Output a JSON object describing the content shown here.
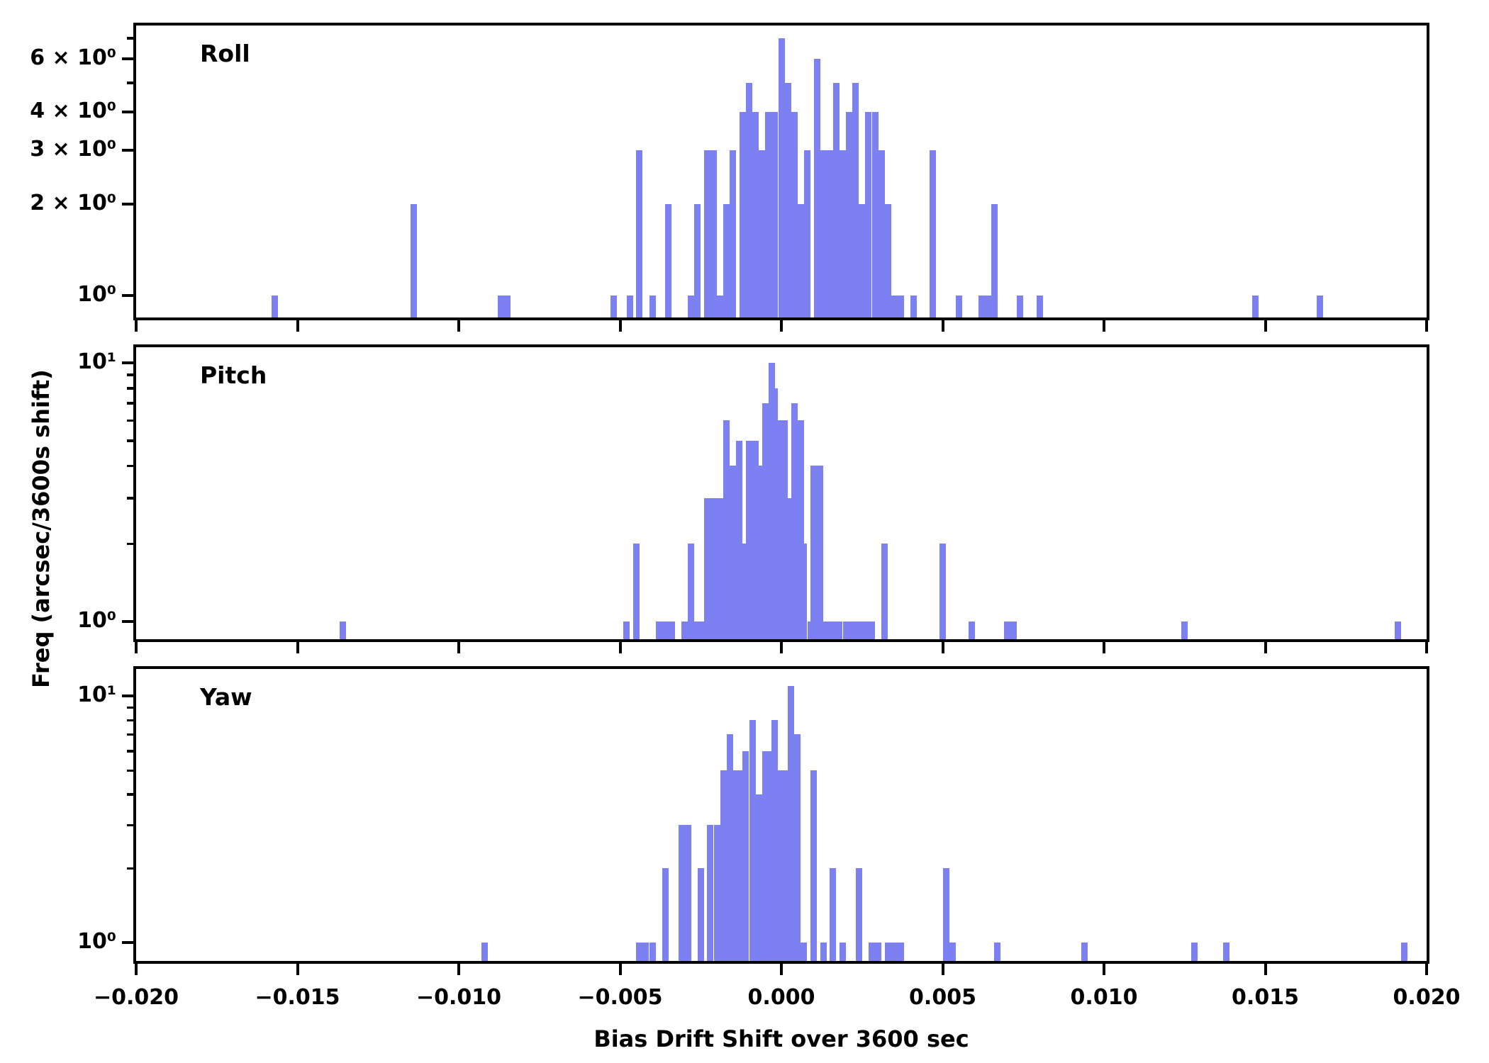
{
  "figure": {
    "background": "#ffffff",
    "bar_color": "#7C80F0",
    "axis_color": "#000000",
    "xlabel": "Bias Drift Shift over 3600 sec",
    "ylabel": "Freq (arcsec/3600s shift)"
  },
  "x_axis": {
    "min": -0.02,
    "max": 0.02,
    "tick_values": [
      -0.02,
      -0.015,
      -0.01,
      -0.005,
      0.0,
      0.005,
      0.01,
      0.015,
      0.02
    ],
    "tick_labels": [
      "−0.020",
      "−0.015",
      "−0.010",
      "−0.005",
      "0.000",
      "0.005",
      "0.010",
      "0.015",
      "0.020"
    ]
  },
  "chart_data": [
    {
      "type": "bar",
      "subtype": "histogram",
      "title": "Roll",
      "bin_width": 0.0002,
      "yscale": "log",
      "ylim": [
        0.847,
        7.7
      ],
      "yticks_labeled": [
        {
          "v": 6,
          "label": "6 × 10⁰"
        },
        {
          "v": 4,
          "label": "4 × 10⁰"
        },
        {
          "v": 3,
          "label": "3 × 10⁰"
        },
        {
          "v": 2,
          "label": "2 × 10⁰"
        },
        {
          "v": 1,
          "label": "10⁰"
        }
      ],
      "yticks_minor": [
        7,
        5
      ],
      "bars": [
        [
          -0.0157,
          1
        ],
        [
          -0.0114,
          2
        ],
        [
          -0.0087,
          1
        ],
        [
          -0.0085,
          1
        ],
        [
          -0.0052,
          1
        ],
        [
          -0.0047,
          1
        ],
        [
          -0.0044,
          3
        ],
        [
          -0.004,
          1
        ],
        [
          -0.0035,
          2
        ],
        [
          -0.0028,
          1
        ],
        [
          -0.0026,
          2
        ],
        [
          -0.0023,
          3
        ],
        [
          -0.0021,
          3
        ],
        [
          -0.0019,
          1
        ],
        [
          -0.0017,
          2
        ],
        [
          -0.0015,
          3
        ],
        [
          -0.0012,
          4
        ],
        [
          -0.001,
          5
        ],
        [
          -0.0008,
          4
        ],
        [
          -0.0006,
          3
        ],
        [
          -0.0004,
          4
        ],
        [
          -0.0002,
          4
        ],
        [
          0.0,
          7
        ],
        [
          0.0002,
          5
        ],
        [
          0.0004,
          4
        ],
        [
          0.0006,
          2
        ],
        [
          0.0008,
          3
        ],
        [
          0.0011,
          6
        ],
        [
          0.0013,
          3
        ],
        [
          0.0015,
          3
        ],
        [
          0.0017,
          5
        ],
        [
          0.0019,
          3
        ],
        [
          0.0021,
          4
        ],
        [
          0.0023,
          5
        ],
        [
          0.0025,
          2
        ],
        [
          0.0027,
          4
        ],
        [
          0.0029,
          4
        ],
        [
          0.0031,
          3
        ],
        [
          0.0033,
          2
        ],
        [
          0.0035,
          1
        ],
        [
          0.0037,
          1
        ],
        [
          0.0041,
          1
        ],
        [
          0.0047,
          3
        ],
        [
          0.0055,
          1
        ],
        [
          0.0062,
          1
        ],
        [
          0.0064,
          1
        ],
        [
          0.0066,
          2
        ],
        [
          0.0074,
          1
        ],
        [
          0.008,
          1
        ],
        [
          0.0147,
          1
        ],
        [
          0.0167,
          1
        ]
      ]
    },
    {
      "type": "bar",
      "subtype": "histogram",
      "title": "Pitch",
      "bin_width": 0.0002,
      "yscale": "log",
      "ylim": [
        0.854,
        11.5
      ],
      "yticks_labeled": [
        {
          "v": 10,
          "label": "10¹"
        },
        {
          "v": 1,
          "label": "10⁰"
        }
      ],
      "yticks_minor": [
        9,
        8,
        7,
        6,
        5,
        4,
        3,
        2
      ],
      "bars": [
        [
          -0.0136,
          1
        ],
        [
          -0.0048,
          1
        ],
        [
          -0.0045,
          2
        ],
        [
          -0.0038,
          1
        ],
        [
          -0.0036,
          1
        ],
        [
          -0.0034,
          1
        ],
        [
          -0.003,
          1
        ],
        [
          -0.0028,
          2
        ],
        [
          -0.0026,
          1
        ],
        [
          -0.0024,
          1
        ],
        [
          -0.0023,
          3
        ],
        [
          -0.0021,
          3
        ],
        [
          -0.0019,
          3
        ],
        [
          -0.0017,
          6
        ],
        [
          -0.0015,
          4
        ],
        [
          -0.0013,
          5
        ],
        [
          -0.0011,
          2
        ],
        [
          -0.001,
          5
        ],
        [
          -0.0008,
          5
        ],
        [
          -0.0006,
          4
        ],
        [
          -0.0005,
          7
        ],
        [
          -0.0004,
          7
        ],
        [
          -0.0003,
          10
        ],
        [
          -0.0002,
          8
        ],
        [
          -0.0001,
          6
        ],
        [
          0.0001,
          6
        ],
        [
          0.0003,
          3
        ],
        [
          0.0004,
          7
        ],
        [
          0.0005,
          6
        ],
        [
          0.0006,
          6
        ],
        [
          0.0007,
          2
        ],
        [
          0.0009,
          1
        ],
        [
          0.001,
          4
        ],
        [
          0.0012,
          4
        ],
        [
          0.0014,
          1
        ],
        [
          0.0016,
          1
        ],
        [
          0.0018,
          1
        ],
        [
          0.002,
          1
        ],
        [
          0.0022,
          1
        ],
        [
          0.0024,
          1
        ],
        [
          0.0026,
          1
        ],
        [
          0.0028,
          1
        ],
        [
          0.0032,
          2
        ],
        [
          0.005,
          2
        ],
        [
          0.0059,
          1
        ],
        [
          0.007,
          1
        ],
        [
          0.0072,
          1
        ],
        [
          0.0125,
          1
        ],
        [
          0.0191,
          1
        ]
      ]
    },
    {
      "type": "bar",
      "subtype": "histogram",
      "title": "Yaw",
      "bin_width": 0.0002,
      "yscale": "log",
      "ylim": [
        0.842,
        12.9
      ],
      "yticks_labeled": [
        {
          "v": 10,
          "label": "10¹"
        },
        {
          "v": 1,
          "label": "10⁰"
        }
      ],
      "yticks_minor": [
        9,
        8,
        7,
        6,
        5,
        4,
        3,
        2
      ],
      "bars": [
        [
          -0.0092,
          1
        ],
        [
          -0.0044,
          1
        ],
        [
          -0.0042,
          1
        ],
        [
          -0.004,
          1
        ],
        [
          -0.0036,
          2
        ],
        [
          -0.0031,
          3
        ],
        [
          -0.0029,
          3
        ],
        [
          -0.0025,
          2
        ],
        [
          -0.0022,
          3
        ],
        [
          -0.002,
          3
        ],
        [
          -0.0018,
          5
        ],
        [
          -0.0016,
          7
        ],
        [
          -0.0014,
          5
        ],
        [
          -0.0012,
          5
        ],
        [
          -0.0011,
          6
        ],
        [
          -0.0009,
          8
        ],
        [
          -0.0008,
          4
        ],
        [
          -0.0007,
          4
        ],
        [
          -0.0005,
          6
        ],
        [
          -0.0004,
          6
        ],
        [
          -0.0002,
          8
        ],
        [
          -0.0001,
          5
        ],
        [
          0.0001,
          5
        ],
        [
          0.0003,
          11
        ],
        [
          0.0005,
          7
        ],
        [
          0.0007,
          1
        ],
        [
          0.001,
          5
        ],
        [
          0.0013,
          1
        ],
        [
          0.0016,
          2
        ],
        [
          0.0019,
          1
        ],
        [
          0.0024,
          2
        ],
        [
          0.0028,
          1
        ],
        [
          0.003,
          1
        ],
        [
          0.0033,
          1
        ],
        [
          0.0035,
          1
        ],
        [
          0.0037,
          1
        ],
        [
          0.0051,
          2
        ],
        [
          0.0053,
          1
        ],
        [
          0.0067,
          1
        ],
        [
          0.0094,
          1
        ],
        [
          0.0128,
          1
        ],
        [
          0.0138,
          1
        ],
        [
          0.0193,
          1
        ]
      ]
    }
  ]
}
